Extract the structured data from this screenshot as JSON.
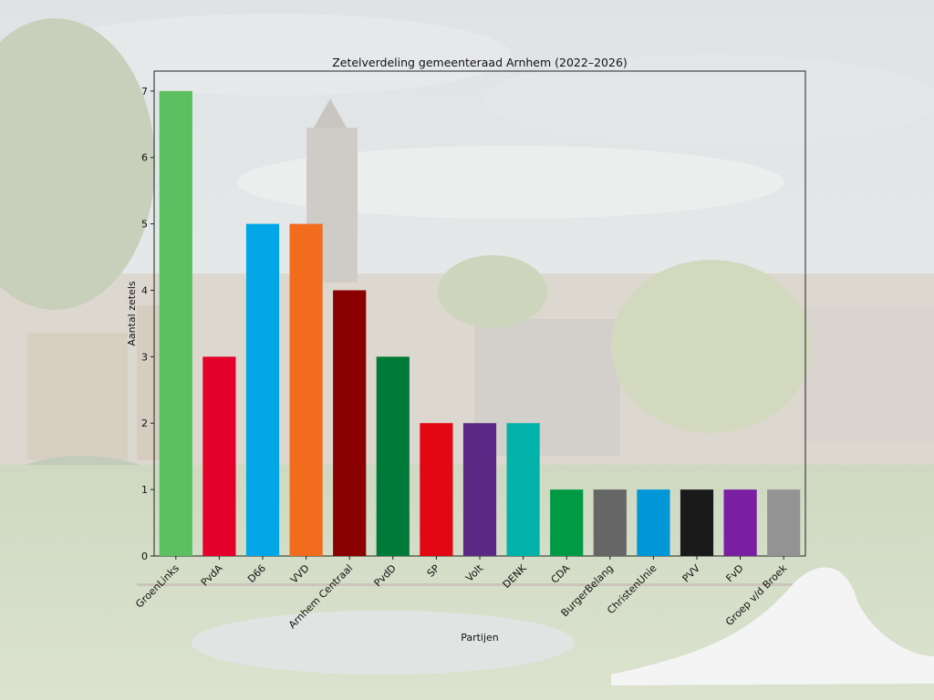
{
  "chart_data": {
    "type": "bar",
    "title": "Zetelverdeling gemeenteraad Arnhem (2022–2026)",
    "xlabel": "Partijen",
    "ylabel": "Aantal zetels",
    "ylim": [
      0,
      7.3
    ],
    "yticks": [
      0,
      1,
      2,
      3,
      4,
      5,
      6,
      7
    ],
    "grid": false,
    "categories": [
      "GroenLinks",
      "PvdA",
      "D66",
      "VVD",
      "Arnhem Centraal",
      "PvdD",
      "SP",
      "Volt",
      "DENK",
      "CDA",
      "BurgerBelang",
      "ChristenUnie",
      "PVV",
      "FvD",
      "Groep v/d Broek"
    ],
    "values": [
      7,
      3,
      5,
      5,
      4,
      3,
      2,
      2,
      2,
      1,
      1,
      1,
      1,
      1,
      1
    ],
    "colors": [
      "#5cbf60",
      "#e3002b",
      "#00a6e6",
      "#f26c1e",
      "#8b0000",
      "#007a38",
      "#e30613",
      "#5b2a86",
      "#00b2a9",
      "#009a44",
      "#666666",
      "#0096d8",
      "#1a1a1a",
      "#7b1fa2",
      "#939393"
    ]
  }
}
